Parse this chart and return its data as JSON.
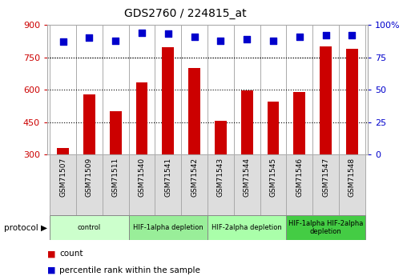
{
  "title": "GDS2760 / 224815_at",
  "samples": [
    "GSM71507",
    "GSM71509",
    "GSM71511",
    "GSM71540",
    "GSM71541",
    "GSM71542",
    "GSM71543",
    "GSM71544",
    "GSM71545",
    "GSM71546",
    "GSM71547",
    "GSM71548"
  ],
  "counts": [
    330,
    578,
    500,
    635,
    795,
    700,
    455,
    598,
    545,
    588,
    800,
    790
  ],
  "percentile_ranks": [
    87,
    90,
    88,
    94,
    93,
    91,
    88,
    89,
    88,
    91,
    92,
    92
  ],
  "ylim_left": [
    300,
    900
  ],
  "ylim_right": [
    0,
    100
  ],
  "yticks_left": [
    300,
    450,
    600,
    750,
    900
  ],
  "yticks_right": [
    0,
    25,
    50,
    75,
    100
  ],
  "bar_color": "#cc0000",
  "dot_color": "#0000cc",
  "left_axis_color": "#cc0000",
  "right_axis_color": "#0000cc",
  "protocol_groups": [
    {
      "label": "control",
      "start": 0,
      "end": 2,
      "color": "#ccffcc"
    },
    {
      "label": "HIF-1alpha depletion",
      "start": 3,
      "end": 5,
      "color": "#99ee99"
    },
    {
      "label": "HIF-2alpha depletion",
      "start": 6,
      "end": 8,
      "color": "#aaffaa"
    },
    {
      "label": "HIF-1alpha HIF-2alpha\ndepletion",
      "start": 9,
      "end": 11,
      "color": "#44cc44"
    }
  ],
  "sname_bg": "#dddddd",
  "grid_linestyle": "dotted",
  "bar_width": 0.45,
  "dot_size": 28
}
